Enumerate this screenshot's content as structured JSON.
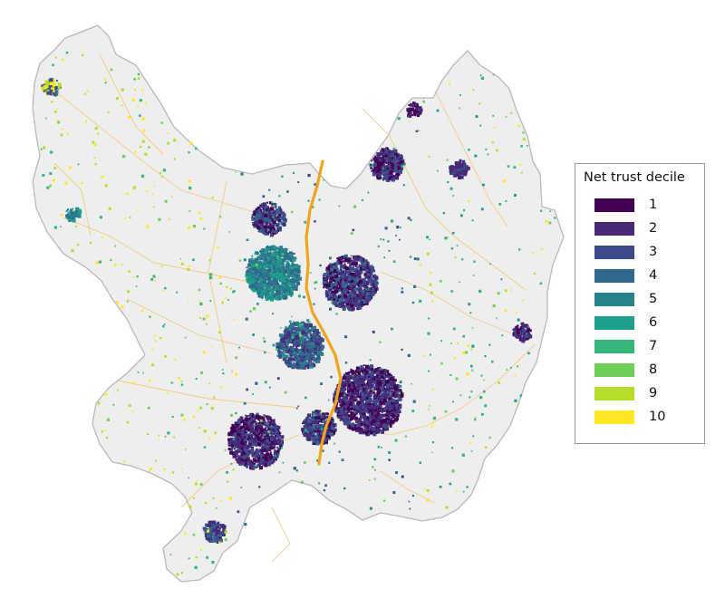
{
  "legend": {
    "title": "Net trust decile",
    "items": [
      {
        "label": "1",
        "color": "#440154"
      },
      {
        "label": "2",
        "color": "#482878"
      },
      {
        "label": "3",
        "color": "#3e4a89"
      },
      {
        "label": "4",
        "color": "#31688e"
      },
      {
        "label": "5",
        "color": "#26828e"
      },
      {
        "label": "6",
        "color": "#1f9e89"
      },
      {
        "label": "7",
        "color": "#35b779"
      },
      {
        "label": "8",
        "color": "#6ece58"
      },
      {
        "label": "9",
        "color": "#b5de2b"
      },
      {
        "label": "10",
        "color": "#fde725"
      }
    ]
  },
  "colors": {
    "region_fill": "#eeeeee",
    "region_border": "#b9b9b9",
    "roads": "#f6c46a",
    "motorway": "#f2a51c"
  }
}
